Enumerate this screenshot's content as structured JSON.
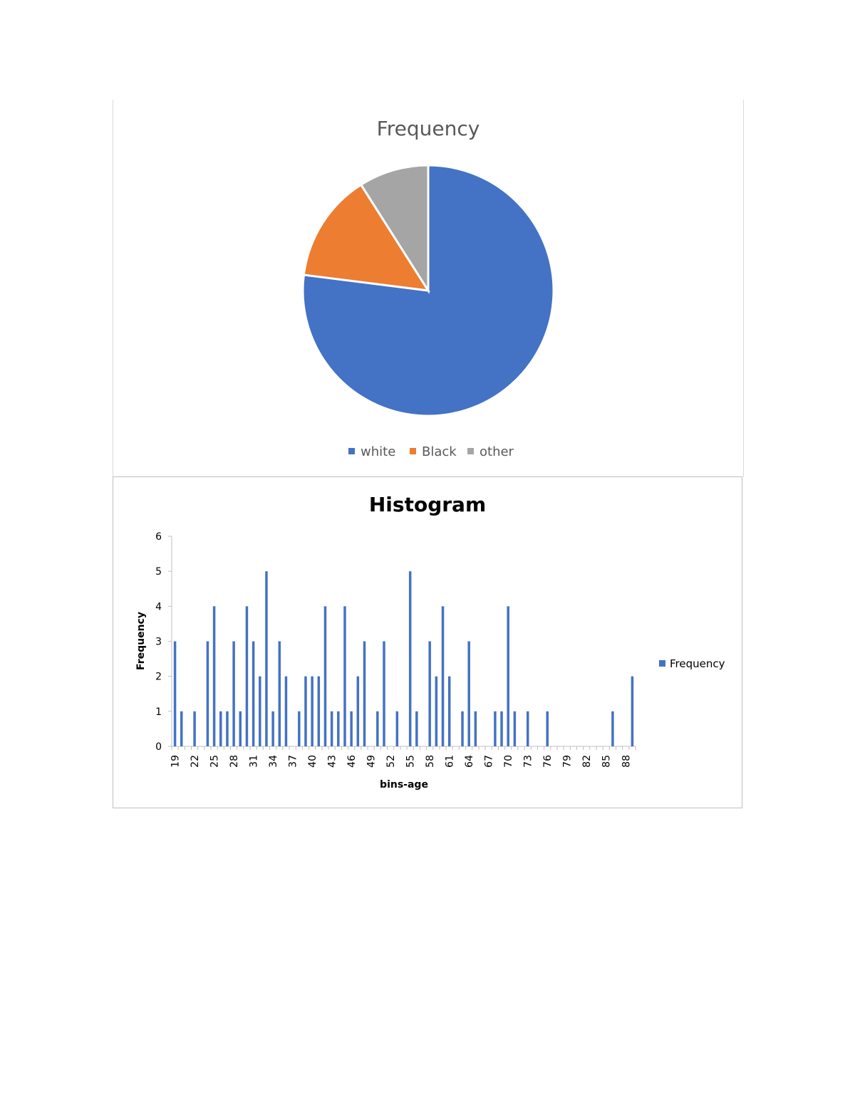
{
  "chart_data": [
    {
      "type": "pie",
      "title": "Frequency",
      "categories": [
        "white",
        "Black",
        "other"
      ],
      "values": [
        77,
        14,
        9
      ],
      "colors": [
        "#4472C4",
        "#ED7D31",
        "#A5A5A5"
      ],
      "legend": "bottom"
    },
    {
      "type": "bar",
      "title": "Histogram",
      "xlabel": "bins-age",
      "ylabel": "Frequency",
      "ylim": [
        0,
        6
      ],
      "yticks": [
        0,
        1,
        2,
        3,
        4,
        5,
        6
      ],
      "legend": "right",
      "color": "#4472C4",
      "categories": [
        19,
        20,
        21,
        22,
        23,
        24,
        25,
        26,
        27,
        28,
        29,
        30,
        31,
        32,
        33,
        34,
        35,
        36,
        37,
        38,
        39,
        40,
        41,
        42,
        43,
        44,
        45,
        46,
        47,
        48,
        49,
        50,
        51,
        52,
        53,
        54,
        55,
        56,
        57,
        58,
        59,
        60,
        61,
        62,
        63,
        64,
        65,
        66,
        67,
        68,
        69,
        70,
        71,
        72,
        73,
        74,
        75,
        76,
        77,
        78,
        79,
        80,
        81,
        82,
        83,
        84,
        85,
        86,
        87,
        88,
        89
      ],
      "xtick_labels": [
        "19",
        "22",
        "25",
        "28",
        "31",
        "34",
        "37",
        "40",
        "43",
        "46",
        "49",
        "52",
        "55",
        "58",
        "61",
        "64",
        "67",
        "70",
        "73",
        "76",
        "79",
        "82",
        "85",
        "88"
      ],
      "series": [
        {
          "name": "Frequency",
          "values": [
            3,
            1,
            0,
            1,
            0,
            3,
            4,
            1,
            1,
            3,
            1,
            4,
            3,
            2,
            5,
            1,
            3,
            2,
            0,
            1,
            2,
            2,
            2,
            4,
            1,
            1,
            4,
            1,
            2,
            3,
            0,
            1,
            3,
            0,
            1,
            0,
            5,
            1,
            0,
            3,
            2,
            4,
            2,
            0,
            1,
            3,
            1,
            0,
            0,
            1,
            1,
            4,
            1,
            0,
            1,
            0,
            0,
            1,
            0,
            0,
            0,
            0,
            0,
            0,
            0,
            0,
            0,
            1,
            0,
            0,
            2
          ]
        }
      ]
    }
  ]
}
